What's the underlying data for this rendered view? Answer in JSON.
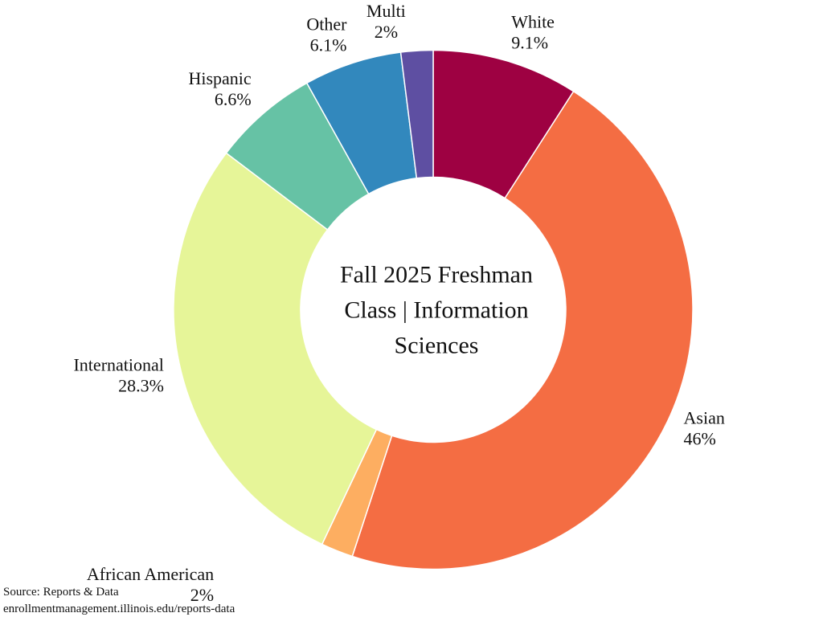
{
  "chart_data": {
    "type": "pie",
    "hole": true,
    "title_lines": [
      "Fall 2025 Freshman",
      "Class | Information",
      "Sciences"
    ],
    "slices": [
      {
        "label": "White",
        "value_label": "9.1%",
        "value": 9.1,
        "color": "#9E0142"
      },
      {
        "label": "Asian",
        "value_label": "46%",
        "value": 46.0,
        "color": "#F46D43"
      },
      {
        "label": "African American",
        "value_label": "2%",
        "value": 2.0,
        "color": "#FDAE61"
      },
      {
        "label": "International",
        "value_label": "28.3%",
        "value": 28.3,
        "color": "#E6F598"
      },
      {
        "label": "Hispanic",
        "value_label": "6.6%",
        "value": 6.6,
        "color": "#66C2A5"
      },
      {
        "label": "Other",
        "value_label": "6.1%",
        "value": 6.1,
        "color": "#3288BD"
      },
      {
        "label": "Multi",
        "value_label": "2%",
        "value": 2.0,
        "color": "#5E4FA2"
      }
    ]
  },
  "source": {
    "line1": "Source: Reports & Data",
    "line2": "enrollmentmanagement.illinois.edu/reports-data"
  }
}
